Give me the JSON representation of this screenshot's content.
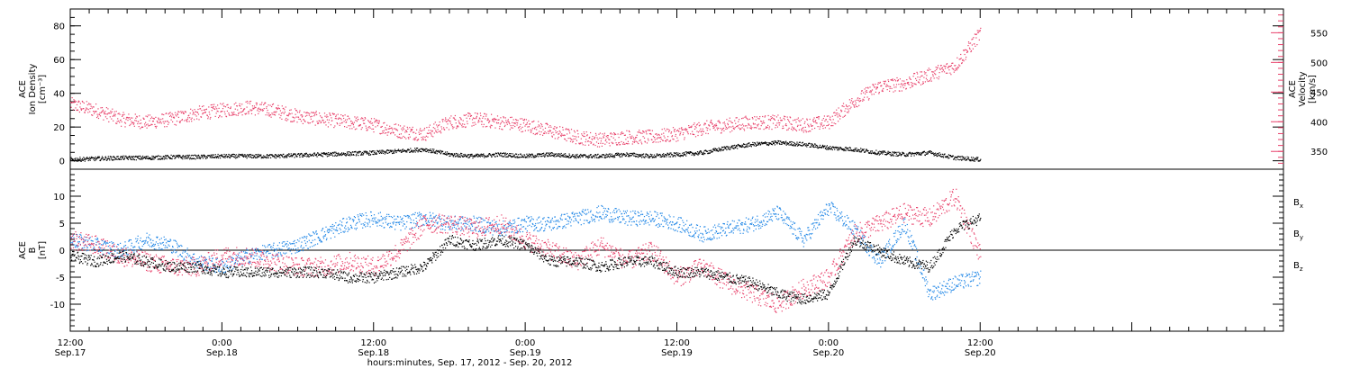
{
  "colors": {
    "black": "#000000",
    "red": "#e8406a",
    "blue": "#1f86e6"
  },
  "xaxis": {
    "title": "hours:minutes, Sep. 17, 2012 - Sep. 20, 2012",
    "range_hours": [
      0,
      96
    ],
    "ticks": [
      {
        "h": 0,
        "top": "12:00",
        "bottom": "Sep.17"
      },
      {
        "h": 12,
        "top": "0:00",
        "bottom": "Sep.18"
      },
      {
        "h": 24,
        "top": "12:00",
        "bottom": "Sep.18"
      },
      {
        "h": 36,
        "top": "0:00",
        "bottom": "Sep.19"
      },
      {
        "h": 48,
        "top": "12:00",
        "bottom": "Sep.19"
      },
      {
        "h": 60,
        "top": "0:00",
        "bottom": "Sep.20"
      },
      {
        "h": 72,
        "top": "12:00",
        "bottom": "Sep.20"
      }
    ]
  },
  "chart_data": [
    {
      "type": "scatter",
      "title": "",
      "ylabel_left": [
        "ACE",
        "Ion Density",
        "[cm⁻³]"
      ],
      "ylabel_right": [
        "ACE",
        "Velocity",
        "[km/s]"
      ],
      "ylim_left": [
        -5,
        90
      ],
      "ylim_right": [
        320,
        590
      ],
      "yticks_left": [
        0,
        20,
        40,
        60,
        80
      ],
      "yticks_right": [
        350,
        400,
        450,
        500,
        550
      ],
      "series": [
        {
          "name": "",
          "axis": "left",
          "color": "#000000",
          "x": [
            0,
            2,
            4,
            6,
            8,
            10,
            12,
            14,
            16,
            18,
            20,
            22,
            24,
            26,
            28,
            30,
            32,
            34,
            36,
            38,
            40,
            42,
            44,
            46,
            48,
            50,
            52,
            54,
            56,
            58,
            60,
            62,
            64,
            66,
            68,
            70,
            72
          ],
          "y": [
            1,
            1.5,
            2,
            2,
            2.5,
            2.5,
            3,
            3,
            3,
            3.5,
            4,
            4.5,
            5,
            6,
            7,
            4,
            3,
            4,
            3,
            4,
            3,
            3,
            4,
            3,
            4,
            5,
            8,
            10,
            11,
            10,
            8,
            7,
            5,
            4,
            5,
            2,
            1
          ]
        },
        {
          "name": "",
          "axis": "right",
          "color": "#e8406a",
          "x": [
            0,
            2,
            4,
            6,
            8,
            10,
            12,
            14,
            16,
            18,
            20,
            22,
            24,
            26,
            28,
            30,
            32,
            34,
            36,
            38,
            40,
            42,
            44,
            46,
            48,
            50,
            52,
            54,
            56,
            58,
            60,
            62,
            64,
            66,
            68,
            70,
            72
          ],
          "y": [
            430,
            420,
            405,
            400,
            405,
            415,
            420,
            425,
            420,
            410,
            405,
            400,
            395,
            385,
            380,
            400,
            405,
            400,
            395,
            385,
            375,
            370,
            375,
            375,
            380,
            390,
            395,
            400,
            400,
            395,
            400,
            435,
            460,
            465,
            480,
            495,
            550
          ]
        }
      ]
    },
    {
      "type": "scatter",
      "title": "",
      "ylabel_left": [
        "ACE",
        "B",
        "[nT]"
      ],
      "ylim": [
        -15,
        15
      ],
      "yticks": [
        -10,
        -5,
        0,
        5,
        10
      ],
      "legend": [
        {
          "label": "B",
          "sub": "x",
          "color": "#000000"
        },
        {
          "label": "B",
          "sub": "y",
          "color": "#1f86e6"
        },
        {
          "label": "B",
          "sub": "z",
          "color": "#e8406a"
        }
      ],
      "series": [
        {
          "name": "Bx",
          "color": "#000000",
          "x": [
            0,
            2,
            4,
            6,
            8,
            10,
            12,
            14,
            16,
            18,
            20,
            22,
            24,
            26,
            28,
            30,
            32,
            34,
            36,
            38,
            40,
            42,
            44,
            46,
            48,
            50,
            52,
            54,
            56,
            58,
            60,
            62,
            64,
            66,
            68,
            70,
            72
          ],
          "y": [
            -1,
            -2,
            -1,
            -2,
            -3,
            -3,
            -4,
            -4,
            -4,
            -4,
            -4,
            -5,
            -5,
            -4,
            -3,
            2,
            1,
            2,
            1,
            -2,
            -2,
            -3,
            -2,
            -2,
            -4,
            -4,
            -5,
            -6,
            -8,
            -9,
            -8,
            2,
            0,
            -2,
            -3,
            4,
            6
          ]
        },
        {
          "name": "By",
          "color": "#1f86e6",
          "x": [
            0,
            2,
            4,
            6,
            8,
            10,
            12,
            14,
            16,
            18,
            20,
            22,
            24,
            26,
            28,
            30,
            32,
            34,
            36,
            38,
            40,
            42,
            44,
            46,
            48,
            50,
            52,
            54,
            56,
            58,
            60,
            62,
            64,
            66,
            68,
            70,
            72
          ],
          "y": [
            2,
            1,
            0,
            2,
            1,
            -2,
            -3,
            -1,
            0,
            1,
            3,
            5,
            6,
            5,
            6,
            5,
            5,
            4,
            5,
            5,
            6,
            7,
            6,
            6,
            5,
            3,
            4,
            5,
            7,
            2,
            8,
            4,
            -2,
            5,
            -8,
            -6,
            -5
          ]
        },
        {
          "name": "Bz",
          "color": "#e8406a",
          "x": [
            0,
            2,
            4,
            6,
            8,
            10,
            12,
            14,
            16,
            18,
            20,
            22,
            24,
            26,
            28,
            30,
            32,
            34,
            36,
            38,
            40,
            42,
            44,
            46,
            48,
            50,
            52,
            54,
            56,
            58,
            60,
            62,
            64,
            66,
            68,
            70,
            72
          ],
          "y": [
            2,
            1,
            -1,
            -2,
            -3,
            -3,
            -1,
            -1,
            -2,
            -3,
            -3,
            -2,
            -3,
            0,
            5,
            5,
            4,
            5,
            2,
            0,
            -2,
            1,
            -2,
            0,
            -5,
            -3,
            -6,
            -8,
            -10,
            -7,
            -5,
            3,
            5,
            7,
            6,
            10,
            -1
          ]
        }
      ]
    }
  ]
}
